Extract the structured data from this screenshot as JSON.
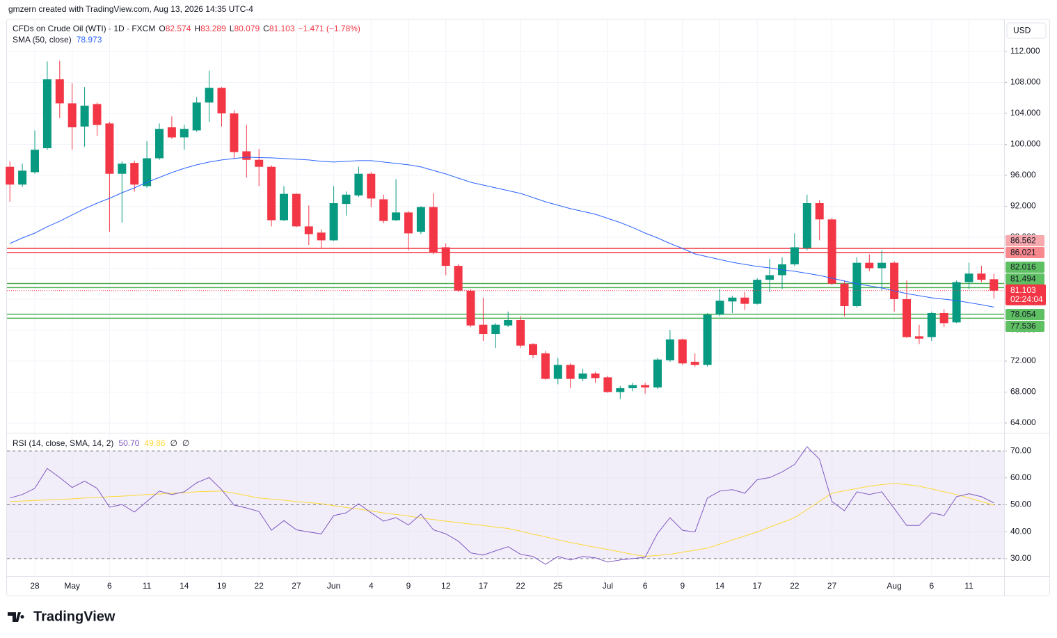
{
  "watermark": "gmzern created with TradingView.com, Aug 13, 2026 14:35 UTC-4",
  "footer": {
    "brand": "TradingView"
  },
  "chart_data": [
    {
      "type": "candlestick",
      "title": "CFDs on Crude Oil (WTI) · 1D · FXCM",
      "currency": "USD",
      "ohlc_labels": [
        "O",
        "H",
        "L",
        "C"
      ],
      "change": "−1.471 (−1.78%)",
      "countdown": "02:24:04",
      "up_color": "#089981",
      "down_color": "#f23645",
      "grid": true,
      "ylim": [
        62.74,
        116.13
      ],
      "yticks": [
        {
          "value": 64,
          "label": "64.000"
        },
        {
          "value": 68,
          "label": "68.000"
        },
        {
          "value": 72,
          "label": "72.000"
        },
        {
          "value": 76,
          "label": "76.000"
        },
        {
          "value": 80,
          "label": "80.000"
        },
        {
          "value": 84,
          "label": "84.000"
        },
        {
          "value": 88,
          "label": "88.000"
        },
        {
          "value": 92,
          "label": "92.000"
        },
        {
          "value": 96,
          "label": "96.000"
        },
        {
          "value": 100,
          "label": "100.000"
        },
        {
          "value": 104,
          "label": "104.000"
        },
        {
          "value": 108,
          "label": "108.000"
        },
        {
          "value": 112,
          "label": "112.000"
        }
      ],
      "categories": [
        null,
        null,
        "28",
        null,
        null,
        "May",
        null,
        null,
        "6",
        null,
        null,
        "11",
        null,
        null,
        "14",
        null,
        null,
        "19",
        null,
        null,
        "22",
        null,
        null,
        "27",
        null,
        null,
        "Jun",
        null,
        null,
        "4",
        null,
        null,
        "9",
        null,
        null,
        "12",
        null,
        null,
        "17",
        null,
        null,
        "22",
        null,
        null,
        "25",
        null,
        null,
        null,
        "Jul",
        null,
        null,
        "6",
        null,
        null,
        "9",
        null,
        null,
        "14",
        null,
        null,
        "17",
        null,
        null,
        "22",
        null,
        null,
        "27",
        null,
        null,
        null,
        null,
        "Aug",
        null,
        null,
        "6",
        null,
        null,
        "11",
        null,
        null
      ],
      "open": [
        97.1,
        94.8,
        96.4,
        99.5,
        108.4,
        105.3,
        102.3,
        105.2,
        102.7,
        96.2,
        97.6,
        94.6,
        98.2,
        102.2,
        100.9,
        101.8,
        105.4,
        107.3,
        104.0,
        99.1,
        98.0,
        97.1,
        90.2,
        93.6,
        89.4,
        88.6,
        87.6,
        92.3,
        93.4,
        96.2,
        92.9,
        90.2,
        91.2,
        88.7,
        91.9,
        86.7,
        84.3,
        81.1,
        76.7,
        75.5,
        76.6,
        77.3,
        74.2,
        73.0,
        69.7,
        71.5,
        69.7,
        70.4,
        69.9,
        68.0,
        68.5,
        68.9,
        68.6,
        72.1,
        74.8,
        71.9,
        71.5,
        78.0,
        79.7,
        80.2,
        79.4,
        82.5,
        83.1,
        84.5,
        86.6,
        92.4,
        90.3,
        82.0,
        79.1,
        84.7,
        84.0,
        84.7,
        80.0,
        75.2,
        75.1,
        78.2,
        77.0,
        82.2,
        83.3,
        82.574
      ],
      "high": [
        97.8,
        97.5,
        101.8,
        110.7,
        110.8,
        107.9,
        107.4,
        105.4,
        102.9,
        97.8,
        97.9,
        100.4,
        102.7,
        103.6,
        102.5,
        106.1,
        109.5,
        107.4,
        104.4,
        102.5,
        99.4,
        97.3,
        94.6,
        93.7,
        92.1,
        89.0,
        94.6,
        93.9,
        97.1,
        96.4,
        93.5,
        95.5,
        91.4,
        92.0,
        93.7,
        87.2,
        84.5,
        81.3,
        80.2,
        76.9,
        78.4,
        77.8,
        74.3,
        73.3,
        72.4,
        71.7,
        71.0,
        70.6,
        70.1,
        68.8,
        69.2,
        69.2,
        72.4,
        76.0,
        74.9,
        73.0,
        78.2,
        81.3,
        80.4,
        80.9,
        82.7,
        85.2,
        85.4,
        88.5,
        93.5,
        92.8,
        90.5,
        82.4,
        85.4,
        85.8,
        86.3,
        84.9,
        82.4,
        76.7,
        78.4,
        78.7,
        82.4,
        84.7,
        84.3,
        83.289
      ],
      "low": [
        92.6,
        94.5,
        96.2,
        99.3,
        103.4,
        99.3,
        99.7,
        101.1,
        88.7,
        89.9,
        93.9,
        94.4,
        98.0,
        100.7,
        99.3,
        101.6,
        102.9,
        102.3,
        98.2,
        95.7,
        94.6,
        89.4,
        90.1,
        89.3,
        87.0,
        86.5,
        87.5,
        90.8,
        93.2,
        91.9,
        89.8,
        90.1,
        86.3,
        88.4,
        85.8,
        83.1,
        80.9,
        76.4,
        74.6,
        73.7,
        76.4,
        73.7,
        72.4,
        69.6,
        69.0,
        68.5,
        69.4,
        69.2,
        67.9,
        67.1,
        68.1,
        67.8,
        68.4,
        71.9,
        71.5,
        71.3,
        71.3,
        77.8,
        78.2,
        78.6,
        79.3,
        80.9,
        81.3,
        84.3,
        86.3,
        87.6,
        81.8,
        77.8,
        78.9,
        83.6,
        81.1,
        78.4,
        75.0,
        74.2,
        74.6,
        76.4,
        76.9,
        81.3,
        82.2,
        80.079
      ],
      "close": [
        94.8,
        96.6,
        99.3,
        108.4,
        105.3,
        102.2,
        105.0,
        102.5,
        96.2,
        97.5,
        94.8,
        98.2,
        102.0,
        100.9,
        102.0,
        105.4,
        107.3,
        104.0,
        99.0,
        98.0,
        97.1,
        90.2,
        93.6,
        89.4,
        88.4,
        87.6,
        92.4,
        93.5,
        96.2,
        93.0,
        90.1,
        91.2,
        88.5,
        91.9,
        86.1,
        84.3,
        81.1,
        76.6,
        75.5,
        76.7,
        77.3,
        74.0,
        72.8,
        69.7,
        71.5,
        69.7,
        70.4,
        69.8,
        68.0,
        68.5,
        68.9,
        68.6,
        72.2,
        74.8,
        71.7,
        71.5,
        78.0,
        79.8,
        80.2,
        79.4,
        82.5,
        83.1,
        84.5,
        86.7,
        92.4,
        90.3,
        82.0,
        79.1,
        84.7,
        84.0,
        84.7,
        80.0,
        75.1,
        74.9,
        78.2,
        76.9,
        82.2,
        83.3,
        82.5,
        81.103
      ],
      "series": [
        {
          "name": "SMA (50, close)",
          "color": "#2962ff",
          "values": [
            87.19,
            87.91,
            88.54,
            89.35,
            90.07,
            90.88,
            91.69,
            92.4,
            93.03,
            93.75,
            94.38,
            95.1,
            95.73,
            96.36,
            96.9,
            97.35,
            97.71,
            97.98,
            98.16,
            98.34,
            98.29,
            98.25,
            98.16,
            98.07,
            97.98,
            97.8,
            97.71,
            97.8,
            97.89,
            97.89,
            97.71,
            97.53,
            97.35,
            97.08,
            96.63,
            96.18,
            95.64,
            95.1,
            94.74,
            94.38,
            94.02,
            93.66,
            93.12,
            92.58,
            92.13,
            91.69,
            91.33,
            90.97,
            90.43,
            89.89,
            89.26,
            88.54,
            87.91,
            87.19,
            86.56,
            85.84,
            85.48,
            85.12,
            84.76,
            84.49,
            84.22,
            84.04,
            83.78,
            83.6,
            83.33,
            83.06,
            82.7,
            82.34,
            81.98,
            81.71,
            81.44,
            81.08,
            80.72,
            80.45,
            80.18,
            80.0,
            79.82,
            79.55,
            79.28,
            78.973
          ]
        }
      ],
      "levels": [
        {
          "value": 86.562,
          "color": "#f23645",
          "label_fill": "#f7a9ad"
        },
        {
          "value": 86.021,
          "color": "#f23645",
          "label_fill": "#f7888d"
        },
        {
          "value": 82.016,
          "color": "#4caf50",
          "label_fill": "#5fbf63"
        },
        {
          "value": 81.494,
          "color": "#4caf50",
          "label_fill": "#5fbf63"
        },
        {
          "value": 78.054,
          "color": "#4caf50",
          "label_fill": "#5fbf63"
        },
        {
          "value": 77.536,
          "color": "#4caf50",
          "label_fill": "#5fbf63"
        }
      ]
    },
    {
      "type": "line",
      "title": "RSI (14, close, SMA, 14, 2)",
      "legend_values": [
        "50.70",
        "49.86",
        "∅",
        "∅"
      ],
      "ylim": [
        23.5,
        76.5
      ],
      "yticks": [
        {
          "value": 30,
          "label": "30.00"
        },
        {
          "value": 40,
          "label": "40.00"
        },
        {
          "value": 50,
          "label": "50.00"
        },
        {
          "value": 60,
          "label": "60.00"
        },
        {
          "value": 70,
          "label": "70.00"
        }
      ],
      "band": [
        30,
        70
      ],
      "band_color": "#7e57c2",
      "hlines": [
        70,
        50,
        30
      ],
      "series": [
        {
          "name": "RSI",
          "color": "#7e57c2",
          "values": [
            52.5,
            53.8,
            56.1,
            63.5,
            60.1,
            56.4,
            58.8,
            56.1,
            49.1,
            50.1,
            47.3,
            51.2,
            55.1,
            53.8,
            54.8,
            58.2,
            60.1,
            55.6,
            49.9,
            48.8,
            47.5,
            40.5,
            44.1,
            40.7,
            39.9,
            39.2,
            46.0,
            47.0,
            50.4,
            47.0,
            43.9,
            45.2,
            42.5,
            46.5,
            40.7,
            39.2,
            36.5,
            32.1,
            31.3,
            32.9,
            34.4,
            31.6,
            30.8,
            27.9,
            30.8,
            29.5,
            30.8,
            30.3,
            28.7,
            29.5,
            30.0,
            30.5,
            39.4,
            45.2,
            40.5,
            39.9,
            52.5,
            55.1,
            55.6,
            54.3,
            59.3,
            60.1,
            62.2,
            65.0,
            71.6,
            66.9,
            51.2,
            47.8,
            54.8,
            53.8,
            54.8,
            48.6,
            42.3,
            42.3,
            47.0,
            46.0,
            53.0,
            54.1,
            53.0,
            50.7
          ]
        },
        {
          "name": "SMA",
          "color": "#fdd835",
          "values": [
            51.2,
            51.4,
            51.6,
            51.8,
            52.0,
            52.2,
            52.5,
            52.7,
            53.0,
            53.2,
            53.5,
            53.8,
            54.0,
            54.3,
            54.5,
            54.8,
            55.0,
            55.1,
            54.3,
            53.4,
            52.5,
            52.1,
            51.7,
            51.2,
            50.8,
            50.4,
            49.7,
            49.0,
            48.4,
            47.7,
            47.0,
            46.4,
            45.8,
            45.1,
            44.5,
            43.9,
            43.4,
            42.8,
            42.3,
            41.7,
            41.2,
            40.2,
            39.1,
            38.1,
            37.0,
            36.0,
            35.1,
            34.2,
            33.4,
            32.5,
            31.6,
            30.8,
            31.2,
            31.6,
            32.4,
            33.1,
            33.9,
            35.4,
            36.9,
            38.4,
            39.9,
            41.7,
            43.4,
            45.2,
            48.2,
            51.3,
            54.3,
            55.2,
            56.0,
            56.9,
            57.5,
            58.0,
            57.5,
            56.9,
            55.9,
            54.8,
            53.8,
            52.5,
            51.2,
            49.86
          ]
        }
      ]
    }
  ]
}
